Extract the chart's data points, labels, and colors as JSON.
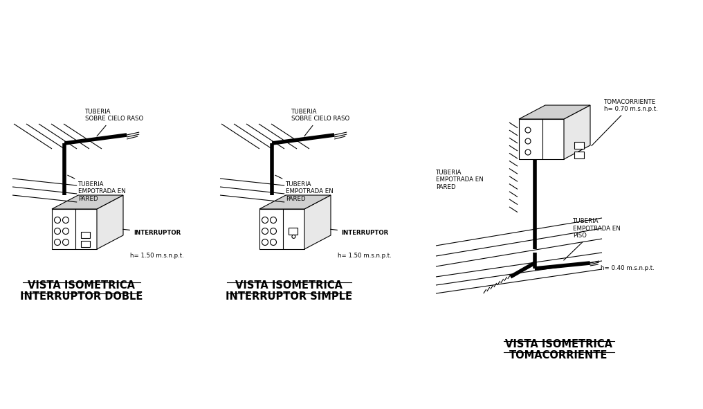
{
  "bg_color": "#ffffff",
  "line_color": "#000000",
  "thick_lw": 4,
  "thin_lw": 0.8,
  "med_lw": 1.5,
  "title1_l1": "VISTA ISOMETRICA",
  "title1_l2": "INTERRUPTOR DOBLE",
  "title2_l1": "VISTA ISOMETRICA",
  "title2_l2": "INTERRUPTOR SIMPLE",
  "title3_l1": "VISTA ISOMETRICA",
  "title3_l2": "TOMACORRIENTE",
  "lbl_tub_cielo": "TUBERIA\nSOBRE CIELO RASO",
  "lbl_tub_pared": "TUBERIA\nEMPOTRADA EN\nPARED",
  "lbl_interruptor": "INTERRUPTOR",
  "lbl_h150": "h= 1.50 m.s.n.p.t.",
  "lbl_tomacorriente": "TOMACORRIENTE",
  "lbl_h070": "h= 0.70 m.s.n.p.t.",
  "lbl_tub_piso": "TUBERIA\nEMPOTRADA EN\nPISO",
  "lbl_h040": "h= 0.40 m.s.n.p.t.",
  "fs_title": 10.5,
  "fs_label": 6.2,
  "fs_bold_label": 6.2
}
